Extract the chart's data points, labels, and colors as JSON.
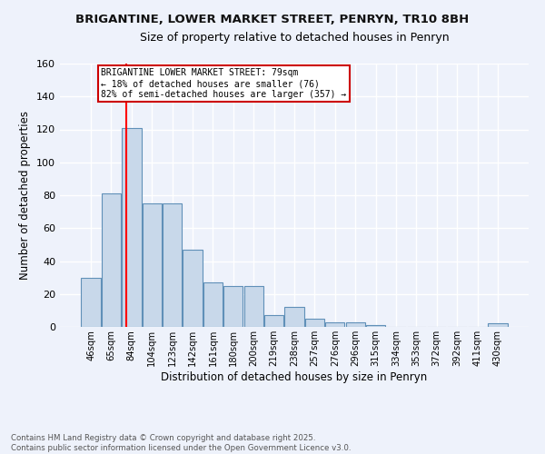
{
  "title1": "BRIGANTINE, LOWER MARKET STREET, PENRYN, TR10 8BH",
  "title2": "Size of property relative to detached houses in Penryn",
  "xlabel": "Distribution of detached houses by size in Penryn",
  "ylabel": "Number of detached properties",
  "footer1": "Contains HM Land Registry data © Crown copyright and database right 2025.",
  "footer2": "Contains public sector information licensed under the Open Government Licence v3.0.",
  "categories": [
    "46sqm",
    "65sqm",
    "84sqm",
    "104sqm",
    "123sqm",
    "142sqm",
    "161sqm",
    "180sqm",
    "200sqm",
    "219sqm",
    "238sqm",
    "257sqm",
    "276sqm",
    "296sqm",
    "315sqm",
    "334sqm",
    "353sqm",
    "372sqm",
    "392sqm",
    "411sqm",
    "430sqm"
  ],
  "values": [
    30,
    81,
    121,
    75,
    75,
    47,
    27,
    25,
    25,
    7,
    12,
    5,
    3,
    3,
    1,
    0,
    0,
    0,
    0,
    0,
    2
  ],
  "bar_color": "#c8d8ea",
  "bar_edge_color": "#6090b8",
  "bg_color": "#eef2fb",
  "grid_color": "#ffffff",
  "red_line_index": 1.72,
  "annotation_text": "BRIGANTINE LOWER MARKET STREET: 79sqm\n← 18% of detached houses are smaller (76)\n82% of semi-detached houses are larger (357) →",
  "annotation_box_color": "#ffffff",
  "annotation_box_edge": "#cc0000",
  "ylim": [
    0,
    160
  ],
  "yticks": [
    0,
    20,
    40,
    60,
    80,
    100,
    120,
    140,
    160
  ]
}
